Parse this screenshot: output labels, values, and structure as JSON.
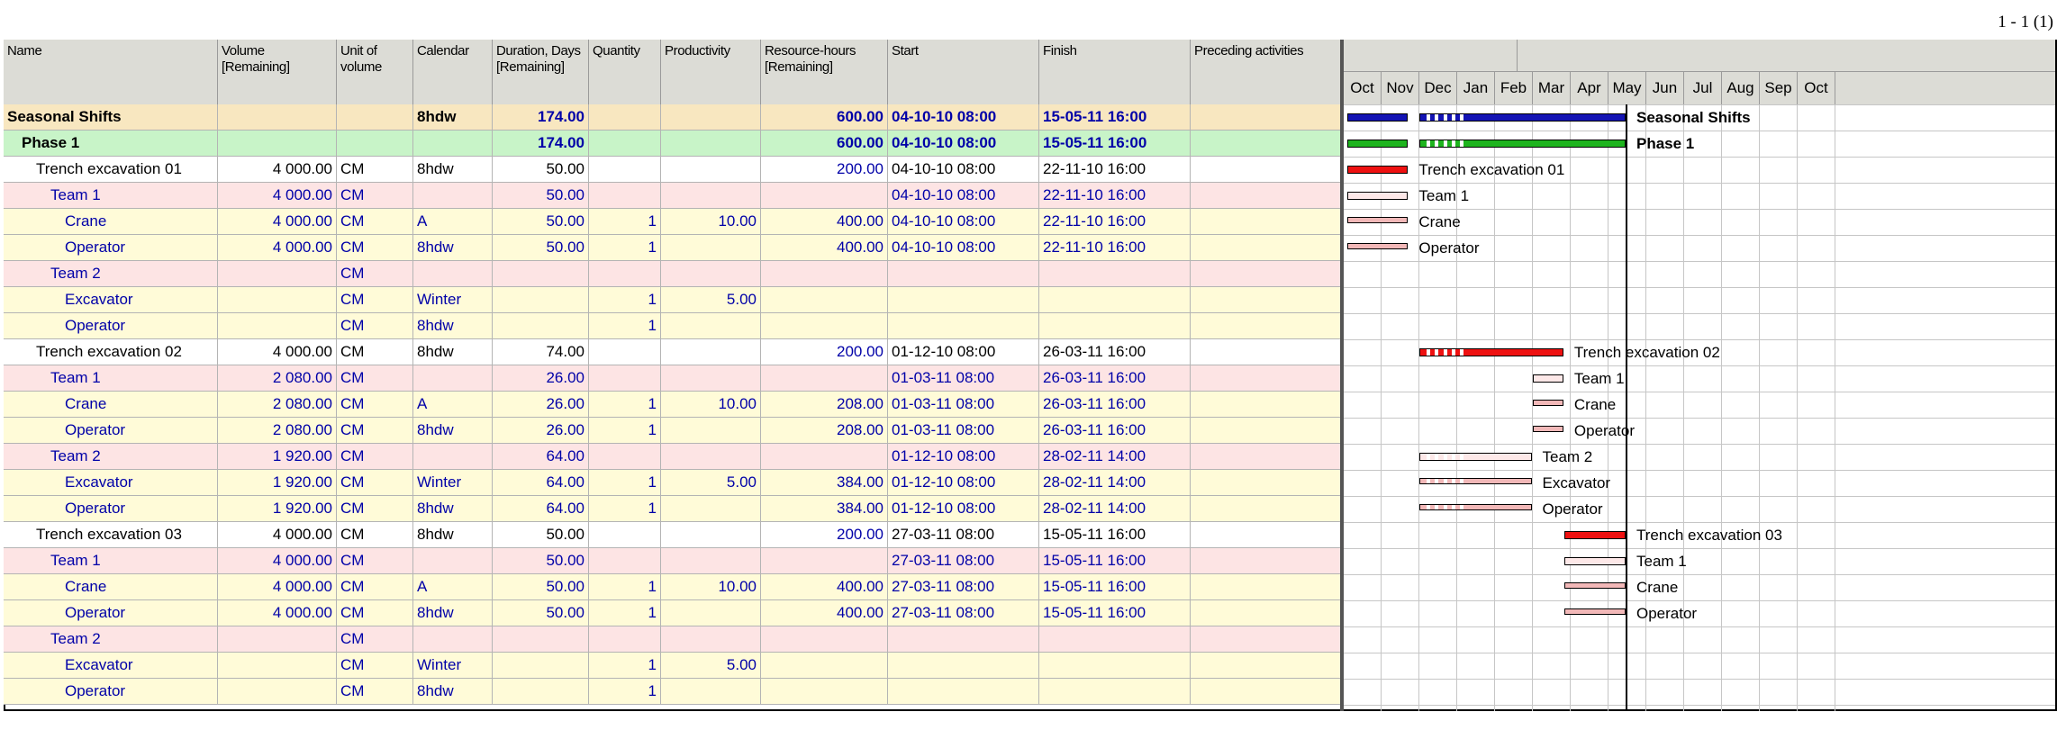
{
  "page_number": "1 - 1 (1)",
  "columns": [
    "Name",
    "Volume [Remaining]",
    "Unit of volume",
    "Calendar",
    "Duration, Days [Remaining]",
    "Quantity",
    "Productivity",
    "Resource-hours [Remaining]",
    "Start",
    "Finish",
    "Preceding activities"
  ],
  "months": [
    "Oct",
    "Nov",
    "Dec",
    "Jan",
    "Feb",
    "Mar",
    "Apr",
    "May",
    "Jun",
    "Jul",
    "Aug",
    "Sep",
    "Oct"
  ],
  "colors": {
    "summary_bar": "#1414b4",
    "phase_bar": "#1eb41e",
    "task_bar": "#ee1111",
    "resource_bar": "#f2b8b8",
    "team_bar": "#fde8e8",
    "row_summary": "#f8e7c0",
    "row_phase": "#c8f4c8",
    "row_task": "#ffffff",
    "row_team": "#fde4e4",
    "row_resource": "#fffbd8",
    "header_bg": "#dcdcd6"
  },
  "rows": [
    {
      "name": "Seasonal Shifts",
      "level": 0,
      "type": "summary",
      "volume": "",
      "unit": "",
      "calendar": "8hdw",
      "duration": "174.00",
      "quantity": "",
      "productivity": "",
      "rhours": "600.00",
      "start": "04-10-10  08:00",
      "finish": "15-05-11  16:00",
      "preceding": ""
    },
    {
      "name": "Phase 1",
      "level": 1,
      "type": "phase",
      "volume": "",
      "unit": "",
      "calendar": "",
      "duration": "174.00",
      "quantity": "",
      "productivity": "",
      "rhours": "600.00",
      "start": "04-10-10  08:00",
      "finish": "15-05-11  16:00",
      "preceding": ""
    },
    {
      "name": "Trench excavation 01",
      "level": 2,
      "type": "task",
      "volume": "4 000.00",
      "unit": "CM",
      "calendar": "8hdw",
      "duration": "50.00",
      "quantity": "",
      "productivity": "",
      "rhours": "200.00",
      "start": "04-10-10  08:00",
      "finish": "22-11-10  16:00",
      "preceding": ""
    },
    {
      "name": "Team 1",
      "level": 3,
      "type": "team",
      "volume": "4 000.00",
      "unit": "CM",
      "calendar": "",
      "duration": "50.00",
      "quantity": "",
      "productivity": "",
      "rhours": "",
      "start": "04-10-10  08:00",
      "finish": "22-11-10  16:00",
      "preceding": ""
    },
    {
      "name": "Crane",
      "level": 4,
      "type": "resource",
      "volume": "4 000.00",
      "unit": "CM",
      "calendar": "A",
      "duration": "50.00",
      "quantity": "1",
      "productivity": "10.00",
      "rhours": "400.00",
      "start": "04-10-10  08:00",
      "finish": "22-11-10  16:00",
      "preceding": ""
    },
    {
      "name": "Operator",
      "level": 4,
      "type": "resource",
      "volume": "4 000.00",
      "unit": "CM",
      "calendar": "8hdw",
      "duration": "50.00",
      "quantity": "1",
      "productivity": "",
      "rhours": "400.00",
      "start": "04-10-10  08:00",
      "finish": "22-11-10  16:00",
      "preceding": ""
    },
    {
      "name": "Team 2",
      "level": 3,
      "type": "team",
      "volume": "",
      "unit": "CM",
      "calendar": "",
      "duration": "",
      "quantity": "",
      "productivity": "",
      "rhours": "",
      "start": "",
      "finish": "",
      "preceding": ""
    },
    {
      "name": "Excavator",
      "level": 4,
      "type": "resource",
      "volume": "",
      "unit": "CM",
      "calendar": "Winter",
      "duration": "",
      "quantity": "1",
      "productivity": "5.00",
      "rhours": "",
      "start": "",
      "finish": "",
      "preceding": ""
    },
    {
      "name": "Operator",
      "level": 4,
      "type": "resource",
      "volume": "",
      "unit": "CM",
      "calendar": "8hdw",
      "duration": "",
      "quantity": "1",
      "productivity": "",
      "rhours": "",
      "start": "",
      "finish": "",
      "preceding": ""
    },
    {
      "name": "Trench excavation 02",
      "level": 2,
      "type": "task",
      "volume": "4 000.00",
      "unit": "CM",
      "calendar": "8hdw",
      "duration": "74.00",
      "quantity": "",
      "productivity": "",
      "rhours": "200.00",
      "start": "01-12-10  08:00",
      "finish": "26-03-11  16:00",
      "preceding": ""
    },
    {
      "name": "Team 1",
      "level": 3,
      "type": "team",
      "volume": "2 080.00",
      "unit": "CM",
      "calendar": "",
      "duration": "26.00",
      "quantity": "",
      "productivity": "",
      "rhours": "",
      "start": "01-03-11  08:00",
      "finish": "26-03-11  16:00",
      "preceding": ""
    },
    {
      "name": "Crane",
      "level": 4,
      "type": "resource",
      "volume": "2 080.00",
      "unit": "CM",
      "calendar": "A",
      "duration": "26.00",
      "quantity": "1",
      "productivity": "10.00",
      "rhours": "208.00",
      "start": "01-03-11  08:00",
      "finish": "26-03-11  16:00",
      "preceding": ""
    },
    {
      "name": "Operator",
      "level": 4,
      "type": "resource",
      "volume": "2 080.00",
      "unit": "CM",
      "calendar": "8hdw",
      "duration": "26.00",
      "quantity": "1",
      "productivity": "",
      "rhours": "208.00",
      "start": "01-03-11  08:00",
      "finish": "26-03-11  16:00",
      "preceding": ""
    },
    {
      "name": "Team 2",
      "level": 3,
      "type": "team",
      "volume": "1 920.00",
      "unit": "CM",
      "calendar": "",
      "duration": "64.00",
      "quantity": "",
      "productivity": "",
      "rhours": "",
      "start": "01-12-10  08:00",
      "finish": "28-02-11  14:00",
      "preceding": ""
    },
    {
      "name": "Excavator",
      "level": 4,
      "type": "resource",
      "volume": "1 920.00",
      "unit": "CM",
      "calendar": "Winter",
      "duration": "64.00",
      "quantity": "1",
      "productivity": "5.00",
      "rhours": "384.00",
      "start": "01-12-10  08:00",
      "finish": "28-02-11  14:00",
      "preceding": ""
    },
    {
      "name": "Operator",
      "level": 4,
      "type": "resource",
      "volume": "1 920.00",
      "unit": "CM",
      "calendar": "8hdw",
      "duration": "64.00",
      "quantity": "1",
      "productivity": "",
      "rhours": "384.00",
      "start": "01-12-10  08:00",
      "finish": "28-02-11  14:00",
      "preceding": ""
    },
    {
      "name": "Trench excavation 03",
      "level": 2,
      "type": "task",
      "volume": "4 000.00",
      "unit": "CM",
      "calendar": "8hdw",
      "duration": "50.00",
      "quantity": "",
      "productivity": "",
      "rhours": "200.00",
      "start": "27-03-11  08:00",
      "finish": "15-05-11  16:00",
      "preceding": ""
    },
    {
      "name": "Team 1",
      "level": 3,
      "type": "team",
      "volume": "4 000.00",
      "unit": "CM",
      "calendar": "",
      "duration": "50.00",
      "quantity": "",
      "productivity": "",
      "rhours": "",
      "start": "27-03-11  08:00",
      "finish": "15-05-11  16:00",
      "preceding": ""
    },
    {
      "name": "Crane",
      "level": 4,
      "type": "resource",
      "volume": "4 000.00",
      "unit": "CM",
      "calendar": "A",
      "duration": "50.00",
      "quantity": "1",
      "productivity": "10.00",
      "rhours": "400.00",
      "start": "27-03-11  08:00",
      "finish": "15-05-11  16:00",
      "preceding": ""
    },
    {
      "name": "Operator",
      "level": 4,
      "type": "resource",
      "volume": "4 000.00",
      "unit": "CM",
      "calendar": "8hdw",
      "duration": "50.00",
      "quantity": "1",
      "productivity": "",
      "rhours": "400.00",
      "start": "27-03-11  08:00",
      "finish": "15-05-11  16:00",
      "preceding": ""
    },
    {
      "name": "Team 2",
      "level": 3,
      "type": "team",
      "volume": "",
      "unit": "CM",
      "calendar": "",
      "duration": "",
      "quantity": "",
      "productivity": "",
      "rhours": "",
      "start": "",
      "finish": "",
      "preceding": ""
    },
    {
      "name": "Excavator",
      "level": 4,
      "type": "resource",
      "volume": "",
      "unit": "CM",
      "calendar": "Winter",
      "duration": "",
      "quantity": "1",
      "productivity": "5.00",
      "rhours": "",
      "start": "",
      "finish": "",
      "preceding": ""
    },
    {
      "name": "Operator",
      "level": 4,
      "type": "resource",
      "volume": "",
      "unit": "CM",
      "calendar": "8hdw",
      "duration": "",
      "quantity": "1",
      "productivity": "",
      "rhours": "",
      "start": "",
      "finish": "",
      "preceding": ""
    }
  ],
  "gantt": {
    "current_date": "15-05-11",
    "bars": [
      {
        "row": 0,
        "type": "summary",
        "label": "Seasonal Shifts",
        "segments": [
          [
            "2010-10-04",
            "2010-11-22"
          ],
          [
            "2010-12-01",
            "2011-05-15"
          ]
        ],
        "breaks": [
          "2010-12-08",
          "2010-12-15",
          "2010-12-22",
          "2010-12-29",
          "2011-01-05"
        ]
      },
      {
        "row": 1,
        "type": "phase",
        "label": "Phase 1",
        "segments": [
          [
            "2010-10-04",
            "2010-11-22"
          ],
          [
            "2010-12-01",
            "2011-05-15"
          ]
        ],
        "breaks": [
          "2010-12-08",
          "2010-12-15",
          "2010-12-22",
          "2010-12-29",
          "2011-01-05"
        ]
      },
      {
        "row": 2,
        "type": "task",
        "label": "Trench excavation 01",
        "segments": [
          [
            "2010-10-04",
            "2010-11-22"
          ]
        ],
        "breaks": []
      },
      {
        "row": 3,
        "type": "team",
        "label": "Team 1",
        "segments": [
          [
            "2010-10-04",
            "2010-11-22"
          ]
        ],
        "breaks": []
      },
      {
        "row": 4,
        "type": "resource",
        "label": "Crane",
        "segments": [
          [
            "2010-10-04",
            "2010-11-22"
          ]
        ],
        "breaks": []
      },
      {
        "row": 5,
        "type": "resource",
        "label": "Operator",
        "segments": [
          [
            "2010-10-04",
            "2010-11-22"
          ]
        ],
        "breaks": []
      },
      {
        "row": 9,
        "type": "task",
        "label": "Trench excavation 02",
        "segments": [
          [
            "2010-12-01",
            "2011-03-26"
          ]
        ],
        "breaks": [
          "2010-12-08",
          "2010-12-15",
          "2010-12-22",
          "2010-12-29",
          "2011-01-05"
        ]
      },
      {
        "row": 10,
        "type": "team",
        "label": "Team 1",
        "segments": [
          [
            "2011-03-01",
            "2011-03-26"
          ]
        ],
        "breaks": []
      },
      {
        "row": 11,
        "type": "resource",
        "label": "Crane",
        "segments": [
          [
            "2011-03-01",
            "2011-03-26"
          ]
        ],
        "breaks": []
      },
      {
        "row": 12,
        "type": "resource",
        "label": "Operator",
        "segments": [
          [
            "2011-03-01",
            "2011-03-26"
          ]
        ],
        "breaks": []
      },
      {
        "row": 13,
        "type": "team",
        "label": "Team 2",
        "segments": [
          [
            "2010-12-01",
            "2011-02-28"
          ]
        ],
        "breaks": [
          "2010-12-08",
          "2010-12-15",
          "2010-12-22",
          "2010-12-29",
          "2011-01-05"
        ]
      },
      {
        "row": 14,
        "type": "resource",
        "label": "Excavator",
        "segments": [
          [
            "2010-12-01",
            "2011-02-28"
          ]
        ],
        "breaks": [
          "2010-12-08",
          "2010-12-15",
          "2010-12-22",
          "2010-12-29",
          "2011-01-05"
        ]
      },
      {
        "row": 15,
        "type": "resource",
        "label": "Operator",
        "segments": [
          [
            "2010-12-01",
            "2011-02-28"
          ]
        ],
        "breaks": [
          "2010-12-08",
          "2010-12-15",
          "2010-12-22",
          "2010-12-29",
          "2011-01-05"
        ]
      },
      {
        "row": 16,
        "type": "task",
        "label": "Trench excavation 03",
        "segments": [
          [
            "2011-03-27",
            "2011-05-15"
          ]
        ],
        "breaks": []
      },
      {
        "row": 17,
        "type": "team",
        "label": "Team 1",
        "segments": [
          [
            "2011-03-27",
            "2011-05-15"
          ]
        ],
        "breaks": []
      },
      {
        "row": 18,
        "type": "resource",
        "label": "Crane",
        "segments": [
          [
            "2011-03-27",
            "2011-05-15"
          ]
        ],
        "breaks": []
      },
      {
        "row": 19,
        "type": "resource",
        "label": "Operator",
        "segments": [
          [
            "2011-03-27",
            "2011-05-15"
          ]
        ],
        "breaks": []
      }
    ]
  }
}
